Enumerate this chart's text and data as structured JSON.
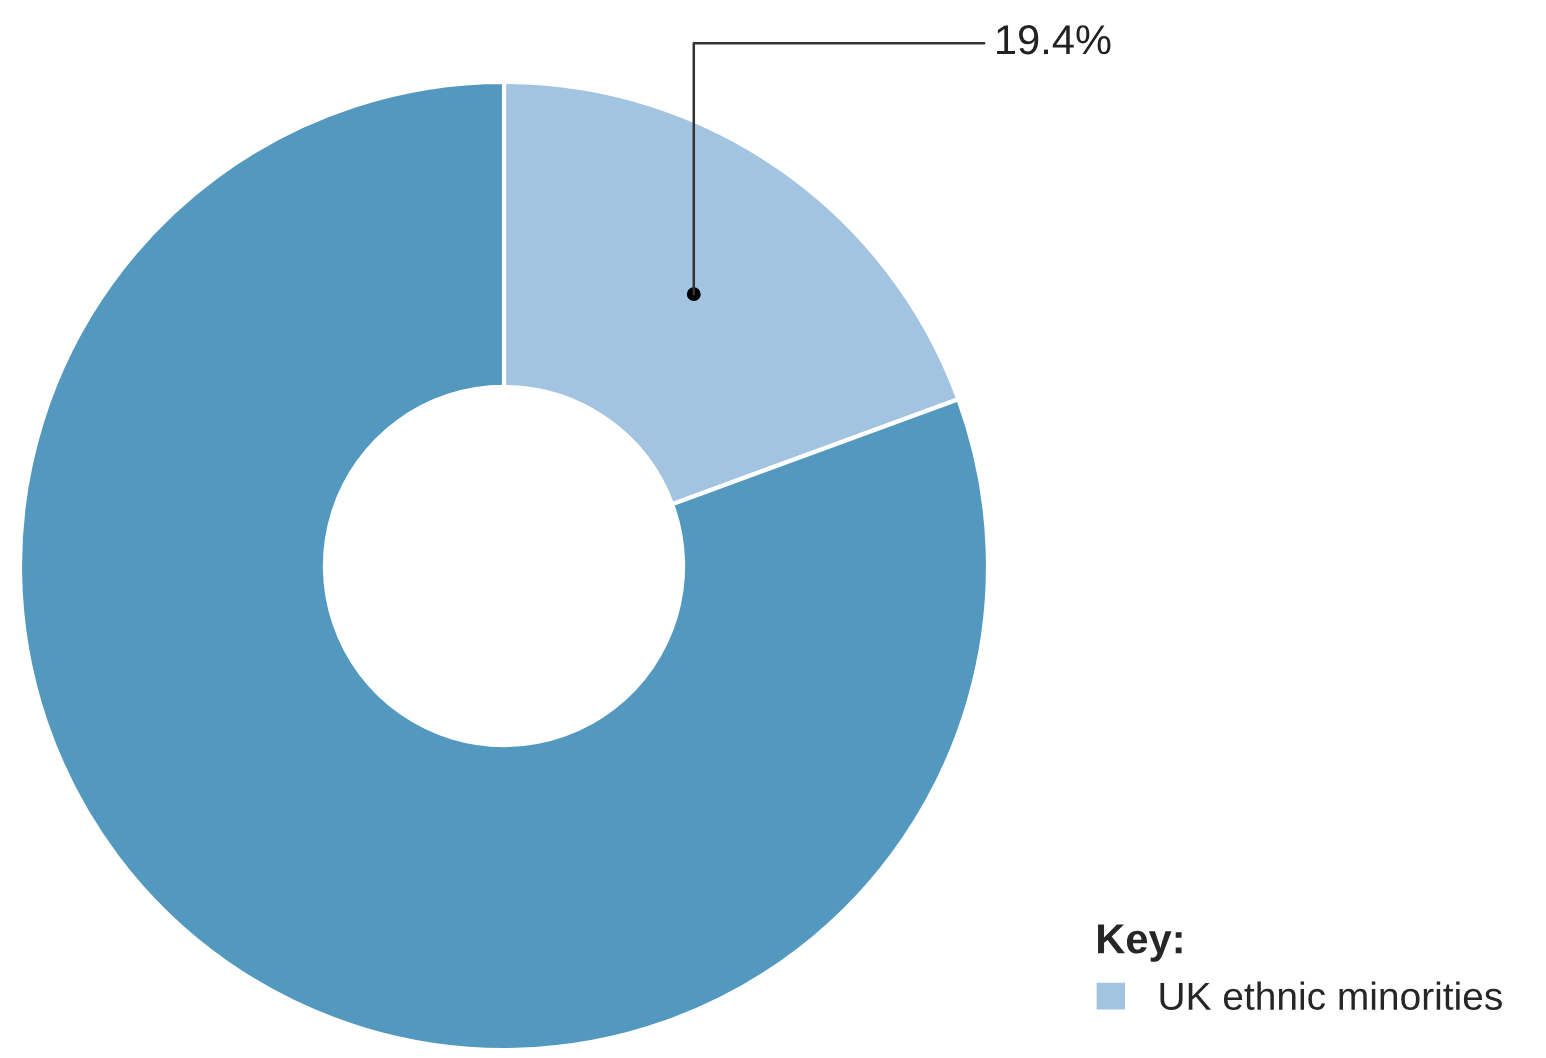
{
  "chart_data": {
    "type": "donut",
    "categories": [
      "UK ethnic minorities",
      null
    ],
    "values": [
      19.4,
      80.6
    ],
    "colors": [
      "#a3c4e0",
      "#5399bf"
    ],
    "value_labels": [
      "19.4%",
      null
    ],
    "legend_title": "Key:",
    "legend": "bottom right"
  }
}
